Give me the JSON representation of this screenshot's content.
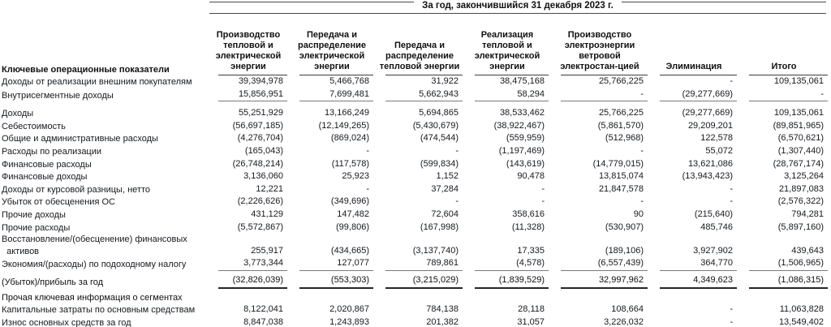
{
  "title": "За год, закончившийся 31 декабря 2023 г.",
  "table": {
    "label_header": "Ключевые операционные показатели",
    "columns": [
      "Производство тепловой и электрической энергии",
      "Передача и распределение электрической энергии",
      "Передача и распределение тепловой энергии",
      "Реализация тепловой и электрической энергии",
      "Производство электроэнергии ветровой электростан-цией",
      "Элиминация",
      "Итого"
    ],
    "rows": [
      {
        "label": "Доходы от реализации внешним покупателям",
        "values": [
          "39,394,978",
          "5,466,768",
          "31,922",
          "38,475,168",
          "25,766,225",
          "-",
          "109,135,061"
        ]
      },
      {
        "label": "Внутрисегментные доходы",
        "values": [
          "15,856,951",
          "7,699,481",
          "5,662,943",
          "58,294",
          "-",
          "(29,277,669)",
          "-"
        ],
        "rule_below": true
      },
      {
        "label": "Доходы",
        "values": [
          "55,251,929",
          "13,166,249",
          "5,694,865",
          "38,533,462",
          "25,766,225",
          "(29,277,669)",
          "109,135,061"
        ],
        "gap_before": true
      },
      {
        "label": "Себестоимость",
        "values": [
          "(56,697,185)",
          "(12,149,265)",
          "(5,430,679)",
          "(38,922,467)",
          "(5,861,570)",
          "29,209,201",
          "(89,851,965)"
        ]
      },
      {
        "label": "Общие и административные расходы",
        "values": [
          "(4,276,704)",
          "(869,024)",
          "(474,544)",
          "(559,959)",
          "(512,968)",
          "122,578",
          "(6,570,621)"
        ]
      },
      {
        "label": "Расходы по реализации",
        "values": [
          "(165,043)",
          "-",
          "-",
          "(1,197,469)",
          "-",
          "55,072",
          "(1,307,440)"
        ]
      },
      {
        "label": "Финансовые расходы",
        "values": [
          "(26,748,214)",
          "(117,578)",
          "(599,834)",
          "(143,619)",
          "(14,779,015)",
          "13,621,086",
          "(28,767,174)"
        ]
      },
      {
        "label": "Финансовые доходы",
        "values": [
          "3,136,060",
          "25,923",
          "1,152",
          "90,478",
          "13,815,074",
          "(13,943,423)",
          "3,125,264"
        ]
      },
      {
        "label": "Доходы от курсовой разницы, нетто",
        "values": [
          "12,221",
          "-",
          "37,284",
          "-",
          "21,847,578",
          "-",
          "21,897,083"
        ]
      },
      {
        "label": "Убыток от обесценения ОС",
        "values": [
          "(2,226,626)",
          "(349,696)",
          "-",
          "-",
          "-",
          "-",
          "(2,576,322)"
        ]
      },
      {
        "label": "Прочие доходы",
        "values": [
          "431,129",
          "147,482",
          "72,604",
          "358,616",
          "90",
          "(215,640)",
          "794,281"
        ]
      },
      {
        "label": "Прочие расходы",
        "values": [
          "(5,572,867)",
          "(99,806)",
          "(167,998)",
          "(11,328)",
          "(530,907)",
          "485,746",
          "(5,897,160)"
        ]
      },
      {
        "label": "Восстановление/(обесценение) финансовых\n  активов",
        "values": [
          "255,917",
          "(434,665)",
          "(3,137,740)",
          "17,335",
          "(189,106)",
          "3,927,902",
          "439,643"
        ]
      },
      {
        "label": "Экономия/(расходы) по подоходному налогу",
        "values": [
          "3,773,344",
          "127,077",
          "789,861",
          "(4,578)",
          "(6,557,439)",
          "364,770",
          "(1,506,965)"
        ],
        "rule_below": true
      },
      {
        "label": "(Убыток)/прибыль за год",
        "values": [
          "(32,826,039)",
          "(553,303)",
          "(3,215,029)",
          "(1,839,529)",
          "32,997,962",
          "4,349,623",
          "(1,086,315)"
        ],
        "bold": true,
        "thick_below": true,
        "gap_small": true
      },
      {
        "label": "Прочая ключевая информация о сегментах",
        "values": [
          "",
          "",
          "",
          "",
          "",
          "",
          ""
        ],
        "bold": true,
        "gap_small": true
      },
      {
        "label": "Капитальные затраты по основным средствам",
        "values": [
          "8,122,041",
          "2,020,867",
          "784,138",
          "28,118",
          "108,664",
          "-",
          "11,063,828"
        ]
      },
      {
        "label": "Износ основных средств за год",
        "values": [
          "8,847,038",
          "1,243,893",
          "201,382",
          "31,057",
          "3,226,032",
          "-",
          "13,549,402"
        ]
      }
    ]
  }
}
